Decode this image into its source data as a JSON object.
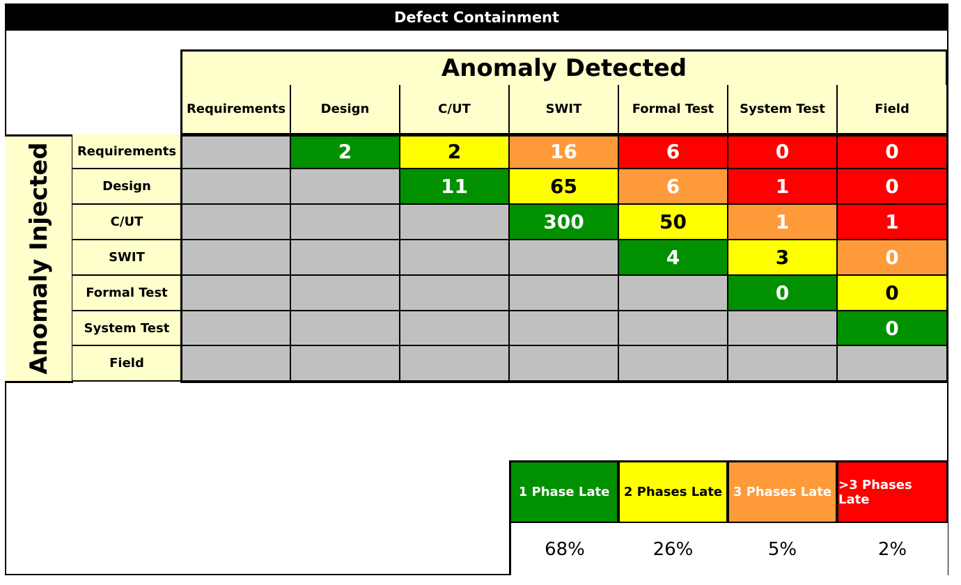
{
  "title": "Defect Containment",
  "chart_data": {
    "type": "heatmap",
    "title": "Defect Containment",
    "xlabel": "Anomaly Detected",
    "ylabel": "Anomaly Injected",
    "columns": [
      "Requirements",
      "Design",
      "C/UT",
      "SWIT",
      "Formal Test",
      "System Test",
      "Field"
    ],
    "rows": [
      "Requirements",
      "Design",
      "C/UT",
      "SWIT",
      "Formal Test",
      "System Test",
      "Field"
    ],
    "values": [
      [
        null,
        2,
        2,
        16,
        6,
        0,
        0
      ],
      [
        null,
        null,
        11,
        65,
        6,
        1,
        0
      ],
      [
        null,
        null,
        null,
        300,
        50,
        1,
        1
      ],
      [
        null,
        null,
        null,
        null,
        4,
        3,
        0
      ],
      [
        null,
        null,
        null,
        null,
        null,
        0,
        0
      ],
      [
        null,
        null,
        null,
        null,
        null,
        null,
        0
      ],
      [
        null,
        null,
        null,
        null,
        null,
        null,
        null
      ]
    ],
    "colors": {
      "1 Phase Late": "#009000",
      "2 Phases Late": "#ffff00",
      "3 Phases Late": "#ff9a3a",
      ">3 Phases Late": "#ff0000",
      "not applicable": "#c0c0c0",
      "header": "#ffffcc"
    },
    "legend": [
      {
        "label": "1 Phase Late",
        "percent": "68%"
      },
      {
        "label": "2 Phases Late",
        "percent": "26%"
      },
      {
        "label": "3 Phases Late",
        "percent": "5%"
      },
      {
        "label": ">3 Phases Late",
        "percent": "2%"
      }
    ],
    "legend_position": "bottom-right"
  }
}
